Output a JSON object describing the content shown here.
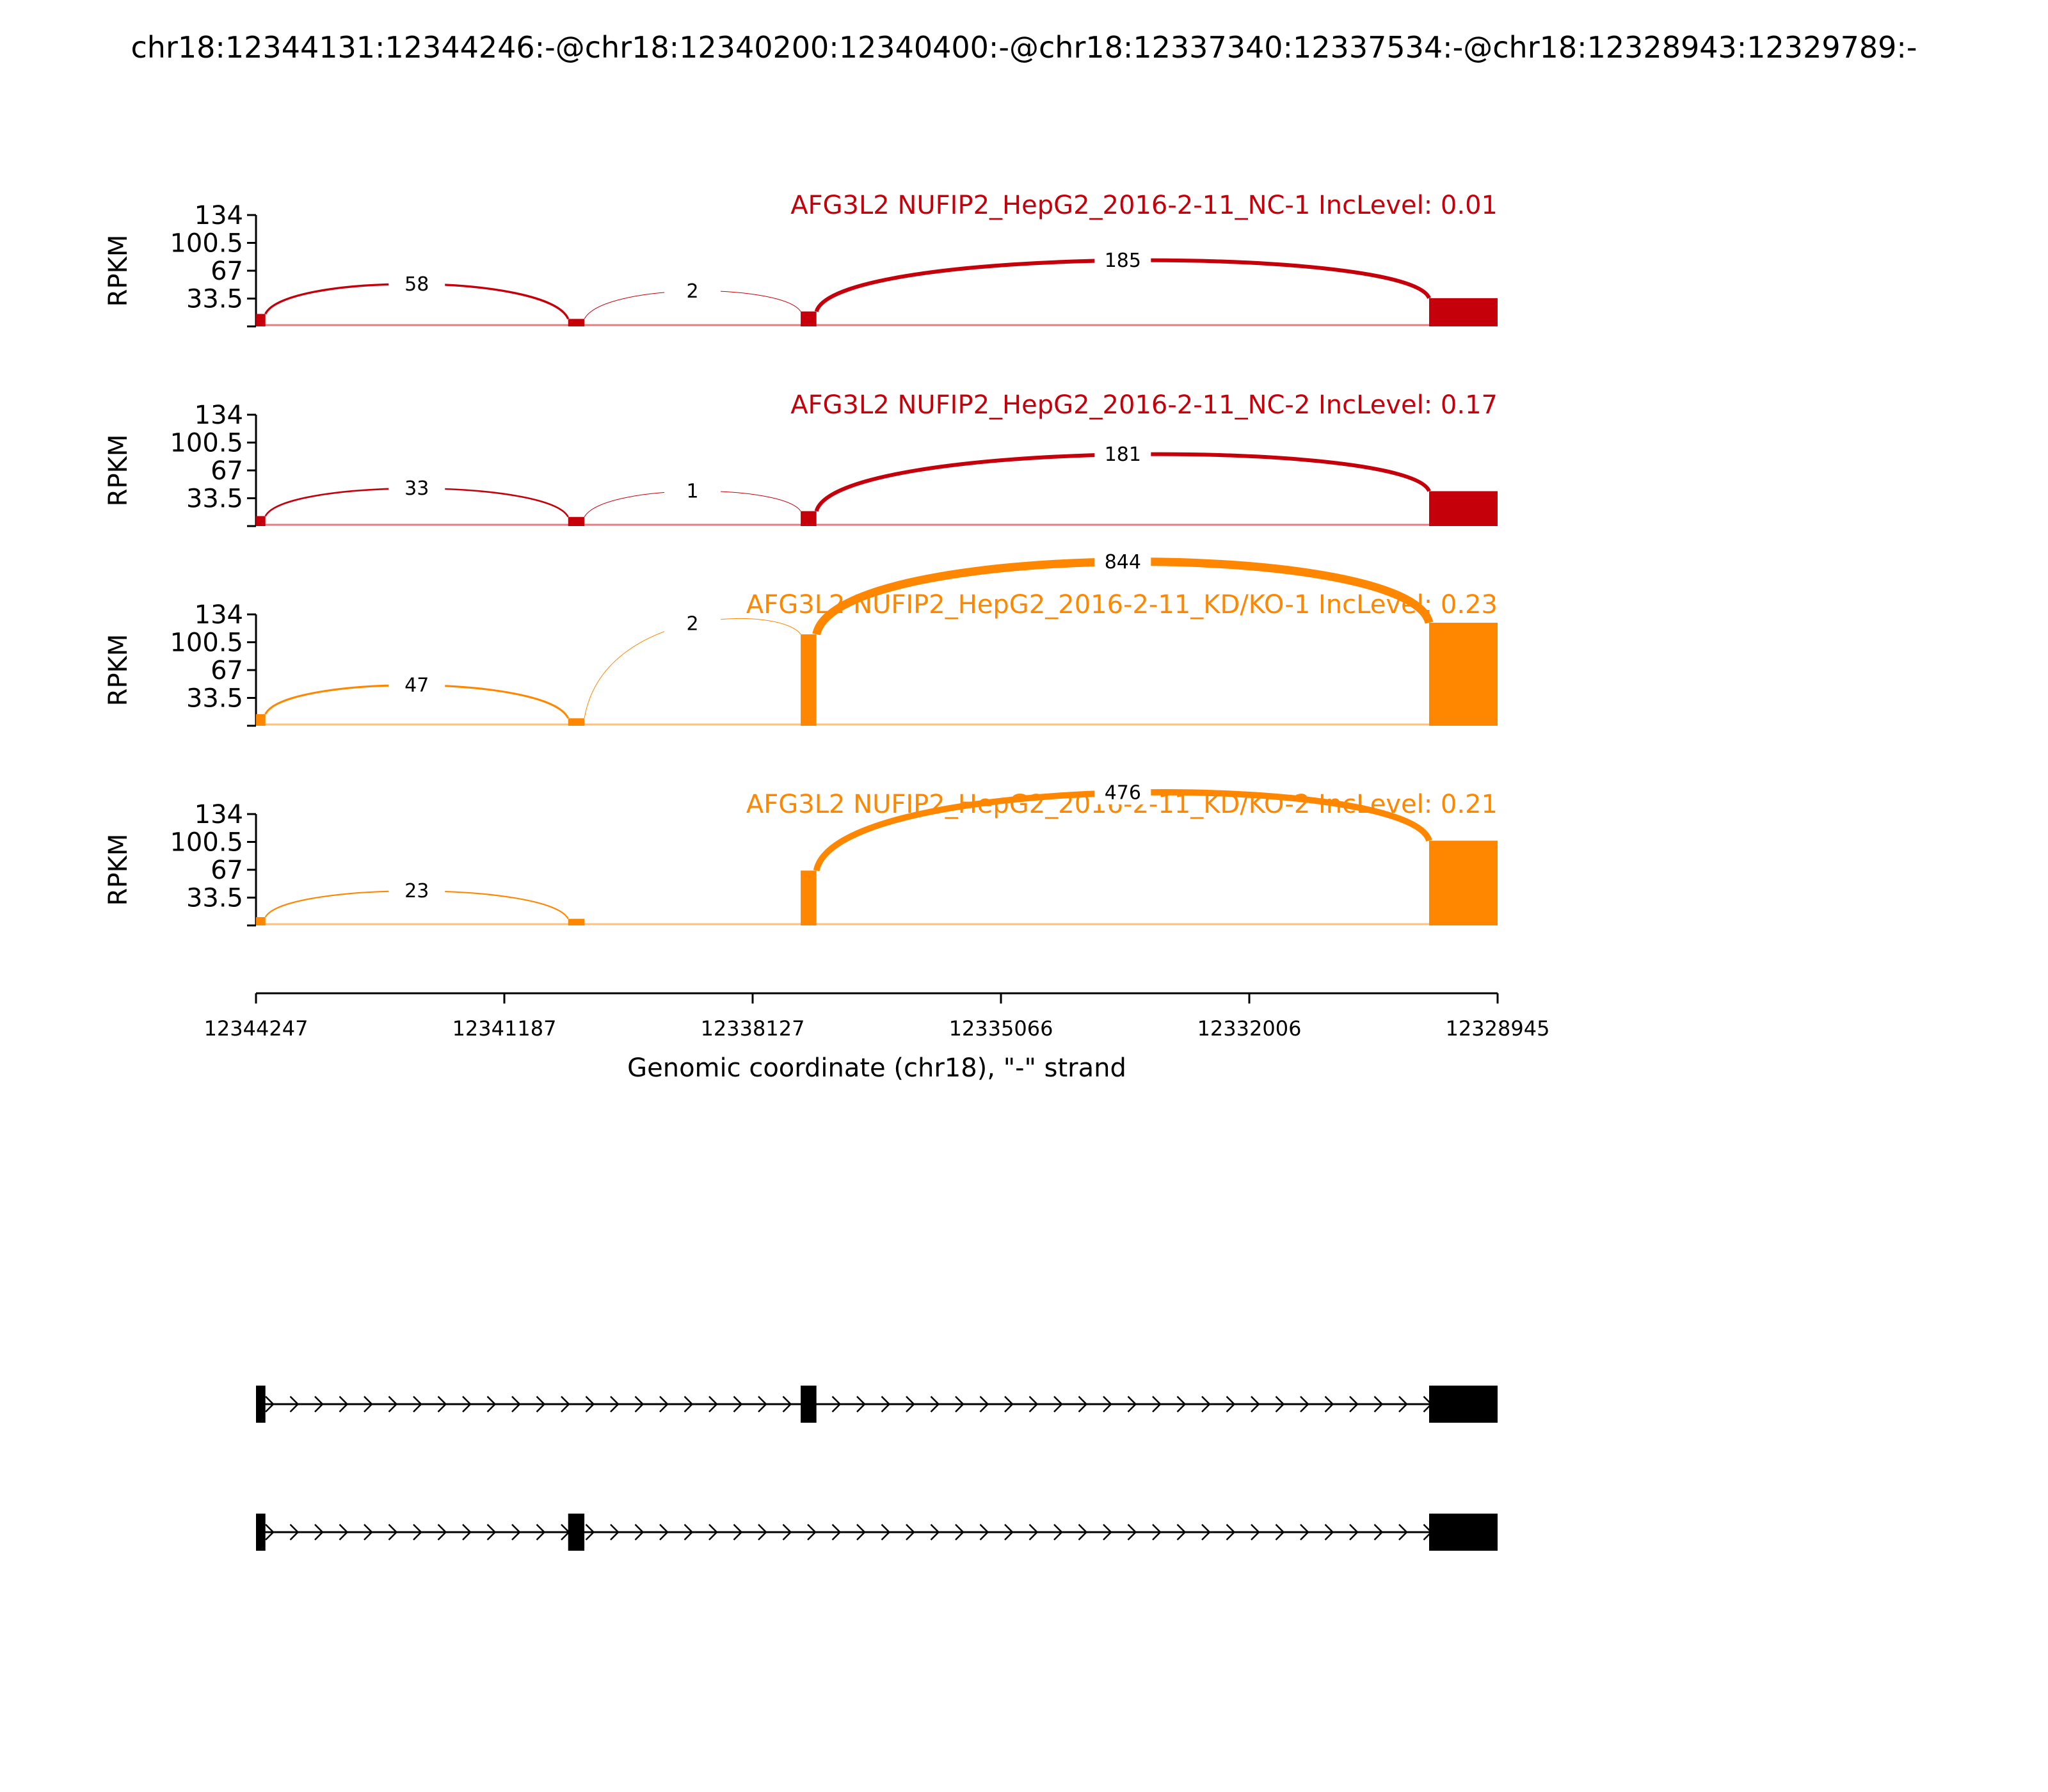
{
  "figure_title": "chr18:12344131:12344246:-@chr18:12340200:12340400:-@chr18:12337340:12337534:-@chr18:12328943:12329789:-",
  "chart_data": {
    "type": "area",
    "title": "chr18:12344131:12344246:-@chr18:12340200:12340400:-@chr18:12337340:12337534:-@chr18:12328943:12329789:-",
    "xlabel": "Genomic coordinate (chr18), \"-\" strand",
    "ylabel": "RPKM",
    "xlim": [
      12344247,
      12328945
    ],
    "x_ticks": [
      "12344247",
      "12341187",
      "12338127",
      "12335066",
      "12332006",
      "12328945"
    ],
    "y_ticks": [
      "134",
      "100.5",
      "67",
      "33.5"
    ],
    "ylim": [
      0,
      134
    ],
    "exons": [
      {
        "name": "E1",
        "start": 12344247,
        "end": 12344131
      },
      {
        "name": "E2",
        "start": 12340400,
        "end": 12340200
      },
      {
        "name": "E3",
        "start": 12337534,
        "end": 12337340
      },
      {
        "name": "E4",
        "start": 12329789,
        "end": 12328945
      }
    ],
    "series": [
      {
        "name": "AFG3L2 NUFIP2_HepG2_2016-2-11_NC-1 IncLevel: 0.01",
        "color": "#c5000b",
        "coverage": [
          {
            "exon": "E1",
            "peak": 15
          },
          {
            "exon": "E2",
            "peak": 9
          },
          {
            "exon": "E3",
            "peak": 18
          },
          {
            "exon": "E4",
            "peak": 34
          }
        ],
        "junctions": [
          {
            "from": "E1",
            "to": "E2",
            "count": 58,
            "label": "58"
          },
          {
            "from": "E2",
            "to": "E3",
            "count": 2,
            "label": "2"
          },
          {
            "from": "E3",
            "to": "E4",
            "count": 185,
            "label": "185"
          }
        ]
      },
      {
        "name": "AFG3L2 NUFIP2_HepG2_2016-2-11_NC-2 IncLevel: 0.17",
        "color": "#c5000b",
        "coverage": [
          {
            "exon": "E1",
            "peak": 12
          },
          {
            "exon": "E2",
            "peak": 11
          },
          {
            "exon": "E3",
            "peak": 18
          },
          {
            "exon": "E4",
            "peak": 42
          }
        ],
        "junctions": [
          {
            "from": "E1",
            "to": "E2",
            "count": 33,
            "label": "33"
          },
          {
            "from": "E2",
            "to": "E3",
            "count": 1,
            "label": "1"
          },
          {
            "from": "E3",
            "to": "E4",
            "count": 181,
            "label": "181"
          }
        ]
      },
      {
        "name": "AFG3L2 NUFIP2_HepG2_2016-2-11_KD/KO-1 IncLevel: 0.23",
        "color": "#ff8700",
        "coverage": [
          {
            "exon": "E1",
            "peak": 14
          },
          {
            "exon": "E2",
            "peak": 9
          },
          {
            "exon": "E3",
            "peak": 110
          },
          {
            "exon": "E4",
            "peak": 124
          }
        ],
        "junctions": [
          {
            "from": "E1",
            "to": "E2",
            "count": 47,
            "label": "47"
          },
          {
            "from": "E2",
            "to": "E3",
            "count": 2,
            "label": "2"
          },
          {
            "from": "E3",
            "to": "E4",
            "count": 844,
            "label": "844"
          }
        ]
      },
      {
        "name": "AFG3L2 NUFIP2_HepG2_2016-2-11_KD/KO-2 IncLevel: 0.21",
        "color": "#ff8700",
        "coverage": [
          {
            "exon": "E1",
            "peak": 10
          },
          {
            "exon": "E2",
            "peak": 8
          },
          {
            "exon": "E3",
            "peak": 66
          },
          {
            "exon": "E4",
            "peak": 102
          }
        ],
        "junctions": [
          {
            "from": "E1",
            "to": "E2",
            "count": 23,
            "label": "23"
          },
          {
            "from": "E3",
            "to": "E4",
            "count": 476,
            "label": "476"
          }
        ]
      }
    ],
    "isoforms": [
      {
        "exons": [
          "E1",
          "E3",
          "E4"
        ]
      },
      {
        "exons": [
          "E1",
          "E2",
          "E4"
        ]
      }
    ]
  }
}
